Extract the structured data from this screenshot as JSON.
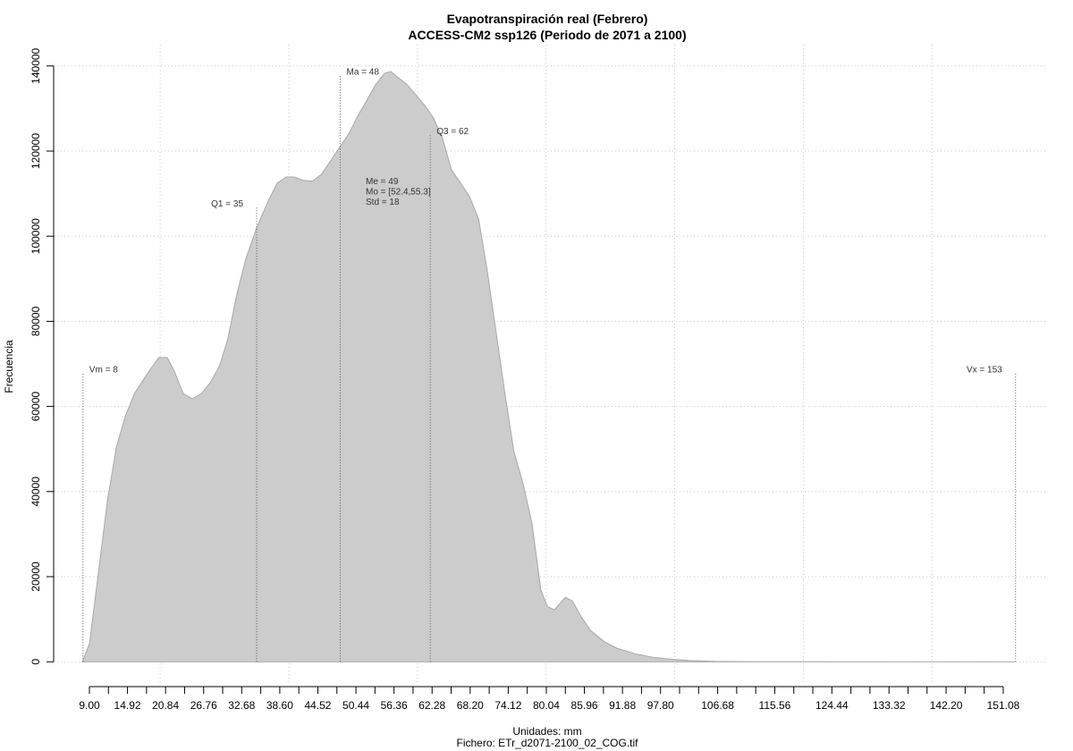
{
  "chart_data": {
    "type": "area",
    "title": "Evapotranspiración real (Febrero)",
    "subtitle": "ACCESS-CM2 ssp126 (Periodo de 2071 a 2100)",
    "xlabel": "Unidades: mm",
    "footer": "Fichero: ETr_d2071-2100_02_COG.tif",
    "ylabel": "Frecuencia",
    "color": "#cccccc",
    "x": [
      7.9,
      9.0,
      10.4,
      11.8,
      13.2,
      14.6,
      16.0,
      18.0,
      19.8,
      21.1,
      22.2,
      23.6,
      25.0,
      26.4,
      27.8,
      29.2,
      30.5,
      31.9,
      33.3,
      35.0,
      36.8,
      38.2,
      39.6,
      40.9,
      42.3,
      43.7,
      45.1,
      46.5,
      47.9,
      49.3,
      50.7,
      52.1,
      53.5,
      54.9,
      55.9,
      57.0,
      58.4,
      59.8,
      61.1,
      62.5,
      63.9,
      65.3,
      66.7,
      68.1,
      69.5,
      70.8,
      72.2,
      73.6,
      75.0,
      76.4,
      77.8,
      79.2,
      80.2,
      81.3,
      83.0,
      84.1,
      85.5,
      86.9,
      89.0,
      91.0,
      93.8,
      96.6,
      99.4,
      102.1,
      106.3,
      113.3,
      134.1,
      152.9
    ],
    "values": [
      0,
      4200,
      21000,
      37800,
      50500,
      57800,
      63000,
      67700,
      71500,
      71500,
      68300,
      63000,
      61800,
      63000,
      65600,
      69400,
      75700,
      86200,
      94600,
      102000,
      108300,
      112500,
      113900,
      113900,
      113100,
      112900,
      114600,
      117700,
      120900,
      124000,
      128200,
      131800,
      135600,
      138300,
      138700,
      137300,
      135600,
      133100,
      130800,
      127800,
      123000,
      115600,
      112500,
      109300,
      104100,
      92500,
      77800,
      63000,
      49400,
      42000,
      32600,
      16800,
      13000,
      12200,
      15100,
      14300,
      10500,
      7400,
      4800,
      3200,
      1900,
      1050,
      630,
      320,
      100,
      20,
      5,
      0
    ],
    "xlim": [
      3.44,
      157.76
    ],
    "ylim": [
      -5000,
      145000
    ],
    "yticks": [
      0,
      20000,
      40000,
      60000,
      80000,
      100000,
      120000,
      140000
    ],
    "xticks": [
      {
        "value": 9,
        "label": "9.00"
      },
      {
        "value": 14.92,
        "label": "14.92"
      },
      {
        "value": 20.84,
        "label": "20.84"
      },
      {
        "value": 26.76,
        "label": "26.76"
      },
      {
        "value": 32.68,
        "label": "32.68"
      },
      {
        "value": 38.6,
        "label": "38.60"
      },
      {
        "value": 44.52,
        "label": "44.52"
      },
      {
        "value": 50.44,
        "label": "50.44"
      },
      {
        "value": 56.36,
        "label": "56.36"
      },
      {
        "value": 62.28,
        "label": "62.28"
      },
      {
        "value": 68.2,
        "label": "68.20"
      },
      {
        "value": 74.12,
        "label": "74.12"
      },
      {
        "value": 80.04,
        "label": "80.04"
      },
      {
        "value": 85.96,
        "label": "85.96"
      },
      {
        "value": 91.88,
        "label": "91.88"
      },
      {
        "value": 97.8,
        "label": "97.80"
      },
      {
        "value": 106.68,
        "label": "106.68"
      },
      {
        "value": 115.56,
        "label": "115.56"
      },
      {
        "value": 124.44,
        "label": "124.44"
      },
      {
        "value": 133.32,
        "label": "133.32"
      },
      {
        "value": 142.2,
        "label": "142.20"
      },
      {
        "value": 151.08,
        "label": "151.08"
      }
    ],
    "xminorticks": [
      11.96,
      17.88,
      23.8,
      29.72,
      35.64,
      41.56,
      47.48,
      53.4,
      59.32,
      65.24,
      71.16,
      77.08,
      83,
      88.92,
      94.84,
      100.76,
      103.72,
      109.64,
      112.6,
      118.52,
      121.48,
      127.4,
      130.36,
      136.28,
      139.24,
      145.16,
      148.12
    ],
    "xgrid": [
      20,
      40,
      60,
      80,
      100,
      120,
      140
    ],
    "grid": true,
    "markers": [
      {
        "label": "Vm = 8",
        "x": 8,
        "y": 68000
      },
      {
        "label": "Q1 = 35",
        "x": 35,
        "y": 107000
      },
      {
        "label": "Ma = 48",
        "x": 48,
        "y": 138000
      },
      {
        "label": "Q3 = 62",
        "x": 62,
        "y": 124000
      },
      {
        "label": "Vx = 153",
        "x": 153,
        "y": 68000
      }
    ],
    "stats": [
      "Me = 49",
      "Mo = [52.4,55.3]",
      "Std = 18"
    ]
  }
}
